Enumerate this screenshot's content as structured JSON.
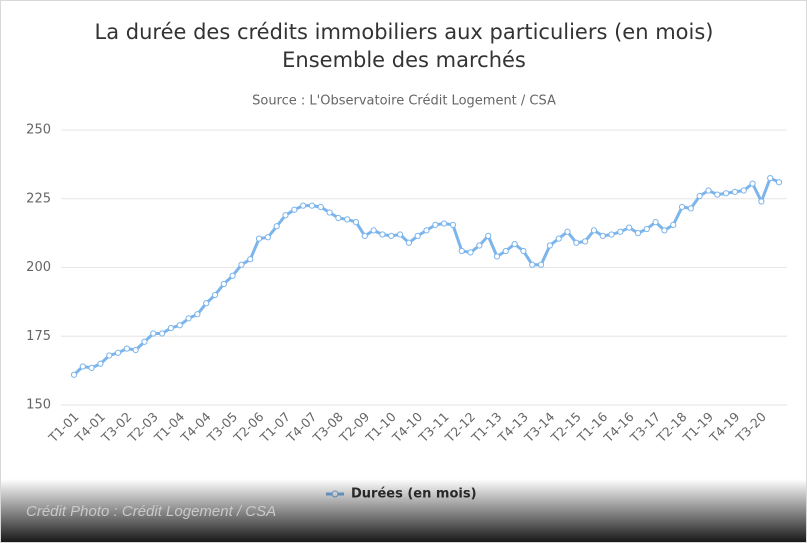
{
  "chart_data": {
    "type": "line",
    "title": "La durée des crédits immobiliers aux particuliers (en mois)",
    "title_line2": "Ensemble des marchés",
    "subtitle": "Source : L'Observatoire Crédit Logement / CSA",
    "categories": [
      "T1-01",
      null,
      null,
      "T4-01",
      null,
      null,
      "T3-02",
      null,
      null,
      "T2-03",
      null,
      null,
      "T1-04",
      null,
      null,
      "T4-04",
      null,
      null,
      "T3-05",
      null,
      null,
      "T2-06",
      null,
      null,
      "T1-07",
      null,
      null,
      "T4-07",
      null,
      null,
      "T3-08",
      null,
      null,
      "T2-09",
      null,
      null,
      "T1-10",
      null,
      null,
      "T4-10",
      null,
      null,
      "T3-11",
      null,
      null,
      "T2-12",
      null,
      null,
      "T1-13",
      null,
      null,
      "T4-13",
      null,
      null,
      "T3-14",
      null,
      null,
      "T2-15",
      null,
      null,
      "T1-16",
      null,
      null,
      "T4-16",
      null,
      null,
      "T3-17",
      null,
      null,
      "T2-18",
      null,
      null,
      "T1-19",
      null,
      null,
      "T4-19",
      null,
      null,
      "T3-20",
      null,
      null
    ],
    "series": [
      {
        "name": "Durées (en mois)",
        "color": "#7cb5ec",
        "values": [
          161,
          164,
          163.5,
          165,
          168,
          169,
          170.5,
          170,
          173,
          176,
          176,
          178,
          179,
          181.5,
          183,
          187,
          190,
          194,
          197,
          201,
          203,
          210.5,
          211,
          215,
          219,
          221,
          222.5,
          222.5,
          222,
          220,
          218,
          217.5,
          216.5,
          211.5,
          213.5,
          212,
          211.5,
          212,
          209,
          211.5,
          213.5,
          215.5,
          216,
          215.5,
          206,
          205.5,
          208,
          211.5,
          204,
          206,
          208.5,
          206,
          201,
          201,
          208,
          210.5,
          213,
          209,
          209.5,
          213.5,
          211.5,
          212,
          213,
          214.5,
          212.5,
          214,
          216.5,
          213.5,
          215.5,
          222,
          221.5,
          226,
          228,
          226.5,
          227,
          227.5,
          228,
          230.5,
          224,
          232.5,
          231
        ]
      }
    ],
    "ylim": [
      150,
      250
    ],
    "yticks": [
      150,
      175,
      200,
      225,
      250
    ],
    "grid": true,
    "legend": "bottom"
  },
  "credit": "Crédit Photo : Crédit Logement / CSA"
}
